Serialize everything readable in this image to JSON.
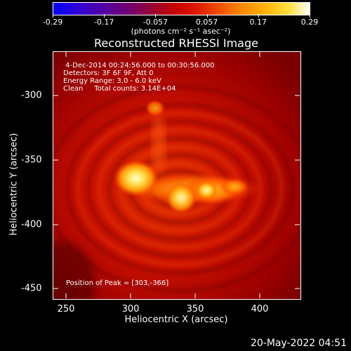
{
  "colorbar": {
    "ticks": [
      "-0.29",
      "-0.17",
      "-0.057",
      "0.057",
      "0.17",
      "0.29"
    ],
    "units": "(photons cm⁻² s⁻¹ asec⁻²)"
  },
  "title": "Reconstructed RHESSI Image",
  "info": {
    "time": " 4-Dec-2014 00:24:56.000 to 00:30:56.000",
    "detectors": "Detectors: 3F 6F 9F, Att 0",
    "energy": "Energy Range: 3.0 - 6.0 keV",
    "clean": "Clean     Total counts: 3.14E+04"
  },
  "peak": "Position of Peak = [303,-366]",
  "xaxis": {
    "label": "Heliocentric X (arcsec)",
    "ticks": [
      "250",
      "300",
      "350",
      "400"
    ]
  },
  "yaxis": {
    "label": "Heliocentric Y (arcsec)",
    "ticks": [
      "-300",
      "-350",
      "-400",
      "-450"
    ]
  },
  "timestamp": "20-May-2022 04:51"
}
